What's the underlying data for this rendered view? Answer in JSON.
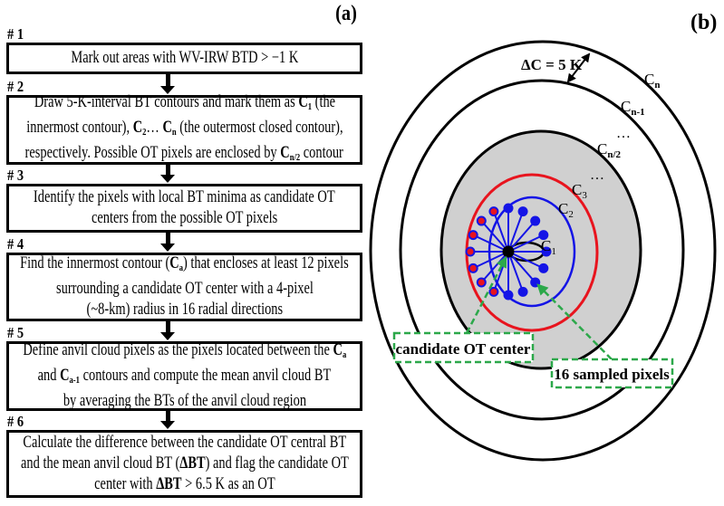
{
  "panel_a": {
    "label": "(a)",
    "steps": [
      {
        "number": "# 1",
        "lines": [
          [
            "Mark out areas with WV-IRW BTD > −1 K"
          ]
        ]
      },
      {
        "number": "# 2",
        "lines": [
          [
            "Draw 5-K-interval BT contours and mark them as ",
            {
              "text": "C",
              "bold": true,
              "sub": "1"
            },
            " (the"
          ],
          [
            "innermost contour), ",
            {
              "text": "C",
              "bold": true,
              "sub": "2"
            },
            "… ",
            {
              "text": "C",
              "bold": true,
              "sub": "n"
            },
            " (the outermost closed contour),"
          ],
          [
            "respectively. Possible OT pixels are enclosed by ",
            {
              "text": "C",
              "bold": true,
              "sub": "n/2"
            },
            " contour"
          ]
        ]
      },
      {
        "number": "# 3",
        "lines": [
          [
            "Identify the pixels with local BT minima as candidate OT"
          ],
          [
            "centers from the possible OT pixels"
          ]
        ]
      },
      {
        "number": "# 4",
        "lines": [
          [
            "Find the innermost contour (",
            {
              "text": "C",
              "bold": true,
              "sub": "a"
            },
            ") that encloses at least 12 pixels"
          ],
          [
            "surrounding a candidate OT center with a 4-pixel"
          ],
          [
            "(~8-km) radius in 16 radial directions"
          ]
        ]
      },
      {
        "number": "# 5",
        "lines": [
          [
            "Define anvil cloud pixels as the pixels located between the ",
            {
              "text": "C",
              "bold": true,
              "sub": "a"
            }
          ],
          [
            "and ",
            {
              "text": "C",
              "bold": true,
              "sub": "a-1"
            },
            " contours and compute the mean anvil cloud BT"
          ],
          [
            "by averaging the BTs of the anvil cloud region"
          ]
        ]
      },
      {
        "number": "# 6",
        "lines": [
          [
            "Calculate the difference between the candidate OT central BT"
          ],
          [
            "and the mean anvil cloud BT (",
            {
              "text": "ΔBT",
              "bold": true
            },
            ") and flag the candidate OT"
          ],
          [
            "center with ",
            {
              "text": "ΔBT",
              "bold": true
            },
            " > 6.5 K as an OT"
          ]
        ]
      }
    ]
  },
  "panel_b": {
    "label": "(b)",
    "delta_c": "ΔC = 5 K",
    "contours": {
      "cn": {
        "main": "C",
        "sub": "n"
      },
      "cn1": {
        "main": "C",
        "sub": "n-1"
      },
      "cn2": {
        "main": "C",
        "sub": "n/2"
      },
      "c3": {
        "main": "C",
        "sub": "3"
      },
      "c2": {
        "main": "C",
        "sub": "2"
      },
      "c1": {
        "main": "C",
        "sub": "1"
      }
    },
    "ellipsis": "…",
    "callout_center": "candidate OT center",
    "callout_pixels": "16 sampled pixels",
    "colors": {
      "gray_region": "#d0d0d0",
      "red_contour": "#e8141e",
      "blue_contour": "#1414e6",
      "callout_green": "#2ca84a"
    }
  }
}
